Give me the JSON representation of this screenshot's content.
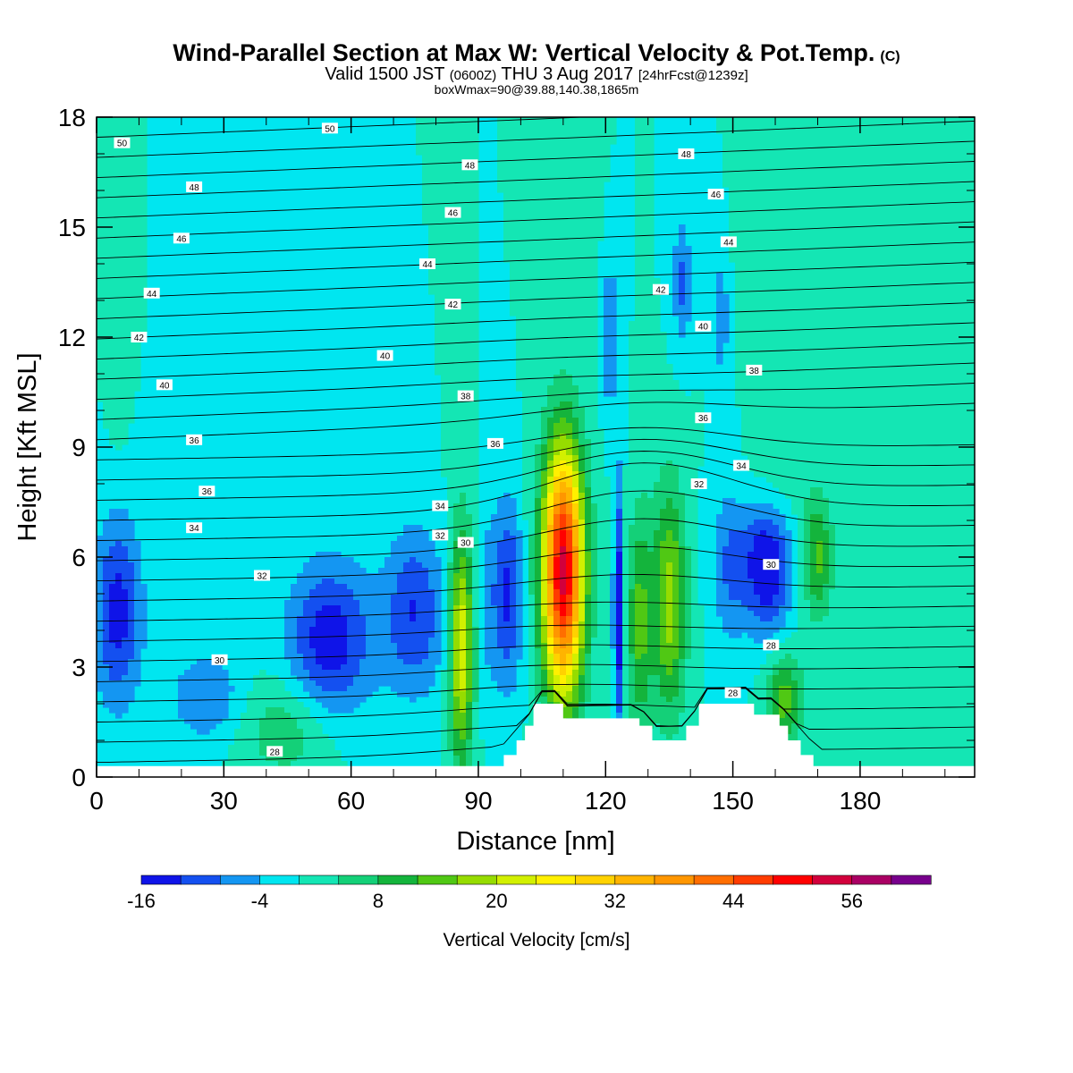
{
  "header": {
    "title": "Wind-Parallel Section at Max W: Vertical Velocity & Pot.Temp.",
    "copyright": "(C)",
    "valid_prefix": "Valid 1500 JST",
    "valid_utc": "(0600Z)",
    "valid_date": "THU 3 Aug 2017",
    "forecast": "[24hrFcst@1239z]",
    "box_info": "boxWmax=90@39.88,140.38,1865m"
  },
  "chart_data": {
    "type": "heatmap",
    "title": "Wind-Parallel Section at Max W: Vertical Velocity & Pot.Temp.",
    "xlabel": "Distance [nm]",
    "ylabel": "Height [Kft MSL]",
    "xlim": [
      0,
      207
    ],
    "ylim": [
      0,
      18
    ],
    "xticks": [
      0,
      30,
      60,
      90,
      120,
      150,
      180
    ],
    "yticks": [
      0,
      3,
      6,
      9,
      12,
      15,
      18
    ],
    "colorbar": {
      "label": "Vertical Velocity [cm/s]",
      "ticks": [
        -16,
        -4,
        8,
        20,
        32,
        44,
        56
      ],
      "levels": [
        -16,
        -12,
        -8,
        -4,
        0,
        4,
        8,
        12,
        16,
        20,
        24,
        28,
        32,
        36,
        40,
        44,
        48,
        52,
        56,
        60
      ],
      "colors": [
        "#0f14e8",
        "#1450f0",
        "#1496f2",
        "#00e6f0",
        "#14e6b4",
        "#14d078",
        "#14b43c",
        "#50c814",
        "#96dc00",
        "#d2f000",
        "#fff000",
        "#ffd200",
        "#ffb400",
        "#ff9600",
        "#ff6e00",
        "#ff3c00",
        "#ff0000",
        "#d2003c",
        "#aa0064",
        "#78008c"
      ]
    },
    "background_velocity_color": "#00e6f0",
    "terrain_color": "#ffffff",
    "terrain_profile": [
      [
        0,
        0.3
      ],
      [
        96,
        0.3
      ],
      [
        96,
        0.6
      ],
      [
        99,
        0.6
      ],
      [
        99,
        1.0
      ],
      [
        101,
        1.0
      ],
      [
        101,
        1.4
      ],
      [
        103,
        1.4
      ],
      [
        103,
        2.0
      ],
      [
        110,
        2.0
      ],
      [
        110,
        1.6
      ],
      [
        128,
        1.6
      ],
      [
        128,
        1.4
      ],
      [
        131,
        1.4
      ],
      [
        131,
        1.0
      ],
      [
        139,
        1.0
      ],
      [
        139,
        1.4
      ],
      [
        142,
        1.4
      ],
      [
        142,
        2.0
      ],
      [
        155,
        2.0
      ],
      [
        155,
        1.7
      ],
      [
        161,
        1.7
      ],
      [
        161,
        1.4
      ],
      [
        163,
        1.4
      ],
      [
        163,
        1.0
      ],
      [
        166,
        1.0
      ],
      [
        166,
        0.6
      ],
      [
        169,
        0.6
      ],
      [
        169,
        0.3
      ],
      [
        207,
        0.3
      ]
    ],
    "velocity_features": [
      {
        "x": 5,
        "h": 4.5,
        "sx": 4,
        "sh": 1.8,
        "w": -14
      },
      {
        "x": 5,
        "h": 11,
        "sx": 1.5,
        "sh": 1.2,
        "w": 3
      },
      {
        "x": 26,
        "h": 2.2,
        "sx": 6,
        "sh": 0.9,
        "w": -8
      },
      {
        "x": 45,
        "h": 1.3,
        "sx": 8,
        "sh": 1.0,
        "w": 7
      },
      {
        "x": 55,
        "h": 3.7,
        "sx": 7,
        "sh": 1.5,
        "w": -15
      },
      {
        "x": 75,
        "h": 4.5,
        "sx": 5,
        "sh": 1.6,
        "w": -12
      },
      {
        "x": 86,
        "h": 3.6,
        "sx": 2,
        "sh": 2.2,
        "w": 24
      },
      {
        "x": 92,
        "h": 4.8,
        "sx": 2,
        "sh": 2,
        "w": -5
      },
      {
        "x": 97,
        "h": 5,
        "sx": 2.3,
        "sh": 1.8,
        "w": -13
      },
      {
        "x": 110,
        "h": 5.6,
        "sx": 3.4,
        "sh": 2.4,
        "w": 54
      },
      {
        "x": 123,
        "h": 4.5,
        "sx": 0.8,
        "sh": 2.5,
        "w": -16
      },
      {
        "x": 128,
        "h": 4.2,
        "sx": 2,
        "sh": 2.2,
        "w": 13
      },
      {
        "x": 135,
        "h": 4.8,
        "sx": 2.8,
        "sh": 2.2,
        "w": 18
      },
      {
        "x": 158,
        "h": 5.8,
        "sx": 4,
        "sh": 1.3,
        "w": -17
      },
      {
        "x": 149,
        "h": 5.8,
        "sx": 3,
        "sh": 1.5,
        "w": -8
      },
      {
        "x": 162,
        "h": 2.1,
        "sx": 3,
        "sh": 0.9,
        "w": 14
      },
      {
        "x": 170,
        "h": 6,
        "sx": 2.5,
        "sh": 1.2,
        "w": 13
      },
      {
        "x": 138,
        "h": 13.5,
        "sx": 1.5,
        "sh": 1.2,
        "w": -9
      },
      {
        "x": 121,
        "h": 12,
        "sx": 1.4,
        "sh": 1.5,
        "w": -8
      },
      {
        "x": 147,
        "h": 12.5,
        "sx": 1.4,
        "sh": 1.2,
        "w": -7
      },
      {
        "x": 115,
        "h": 16.5,
        "sx": 2,
        "sh": 2,
        "w": 4
      },
      {
        "x": 152,
        "h": 16,
        "sx": 1.3,
        "sh": 2,
        "w": 3
      },
      {
        "x": 165,
        "h": 11,
        "sx": 2,
        "sh": 1,
        "w": 3
      },
      {
        "x": 202,
        "h": 8.8,
        "sx": 4,
        "sh": 2.2,
        "w": 4
      },
      {
        "x": 200,
        "h": 2.5,
        "sx": 10,
        "sh": 1.5,
        "w": 3
      },
      {
        "x": 160,
        "h": 8,
        "sx": 5,
        "sh": 1,
        "w": 4
      }
    ],
    "theta_labels": [
      {
        "x": 6,
        "h": 17.3,
        "t": "50"
      },
      {
        "x": 55,
        "h": 17.7,
        "t": "50"
      },
      {
        "x": 88,
        "h": 16.7,
        "t": "48"
      },
      {
        "x": 139,
        "h": 17.0,
        "t": "48"
      },
      {
        "x": 23,
        "h": 16.1,
        "t": "48"
      },
      {
        "x": 146,
        "h": 15.9,
        "t": "46"
      },
      {
        "x": 84,
        "h": 15.4,
        "t": "46"
      },
      {
        "x": 20,
        "h": 14.7,
        "t": "46"
      },
      {
        "x": 149,
        "h": 14.6,
        "t": "44"
      },
      {
        "x": 78,
        "h": 14.0,
        "t": "44"
      },
      {
        "x": 13,
        "h": 13.2,
        "t": "44"
      },
      {
        "x": 133,
        "h": 13.3,
        "t": "42"
      },
      {
        "x": 84,
        "h": 12.9,
        "t": "42"
      },
      {
        "x": 10,
        "h": 12.0,
        "t": "42"
      },
      {
        "x": 143,
        "h": 12.3,
        "t": "40"
      },
      {
        "x": 68,
        "h": 11.5,
        "t": "40"
      },
      {
        "x": 16,
        "h": 10.7,
        "t": "40"
      },
      {
        "x": 155,
        "h": 11.1,
        "t": "38"
      },
      {
        "x": 87,
        "h": 10.4,
        "t": "38"
      },
      {
        "x": 143,
        "h": 9.8,
        "t": "36"
      },
      {
        "x": 94,
        "h": 9.1,
        "t": "36"
      },
      {
        "x": 23,
        "h": 9.2,
        "t": "36"
      },
      {
        "x": 26,
        "h": 7.8,
        "t": "36"
      },
      {
        "x": 152,
        "h": 8.5,
        "t": "34"
      },
      {
        "x": 81,
        "h": 7.4,
        "t": "34"
      },
      {
        "x": 23,
        "h": 6.8,
        "t": "34"
      },
      {
        "x": 142,
        "h": 8.0,
        "t": "32"
      },
      {
        "x": 81,
        "h": 6.6,
        "t": "32"
      },
      {
        "x": 39,
        "h": 5.5,
        "t": "32"
      },
      {
        "x": 87,
        "h": 6.4,
        "t": "30"
      },
      {
        "x": 159,
        "h": 5.8,
        "t": "30"
      },
      {
        "x": 29,
        "h": 3.2,
        "t": "30"
      },
      {
        "x": 159,
        "h": 3.6,
        "t": "28"
      },
      {
        "x": 150,
        "h": 2.3,
        "t": "28"
      },
      {
        "x": 42,
        "h": 0.7,
        "t": "28"
      }
    ]
  }
}
